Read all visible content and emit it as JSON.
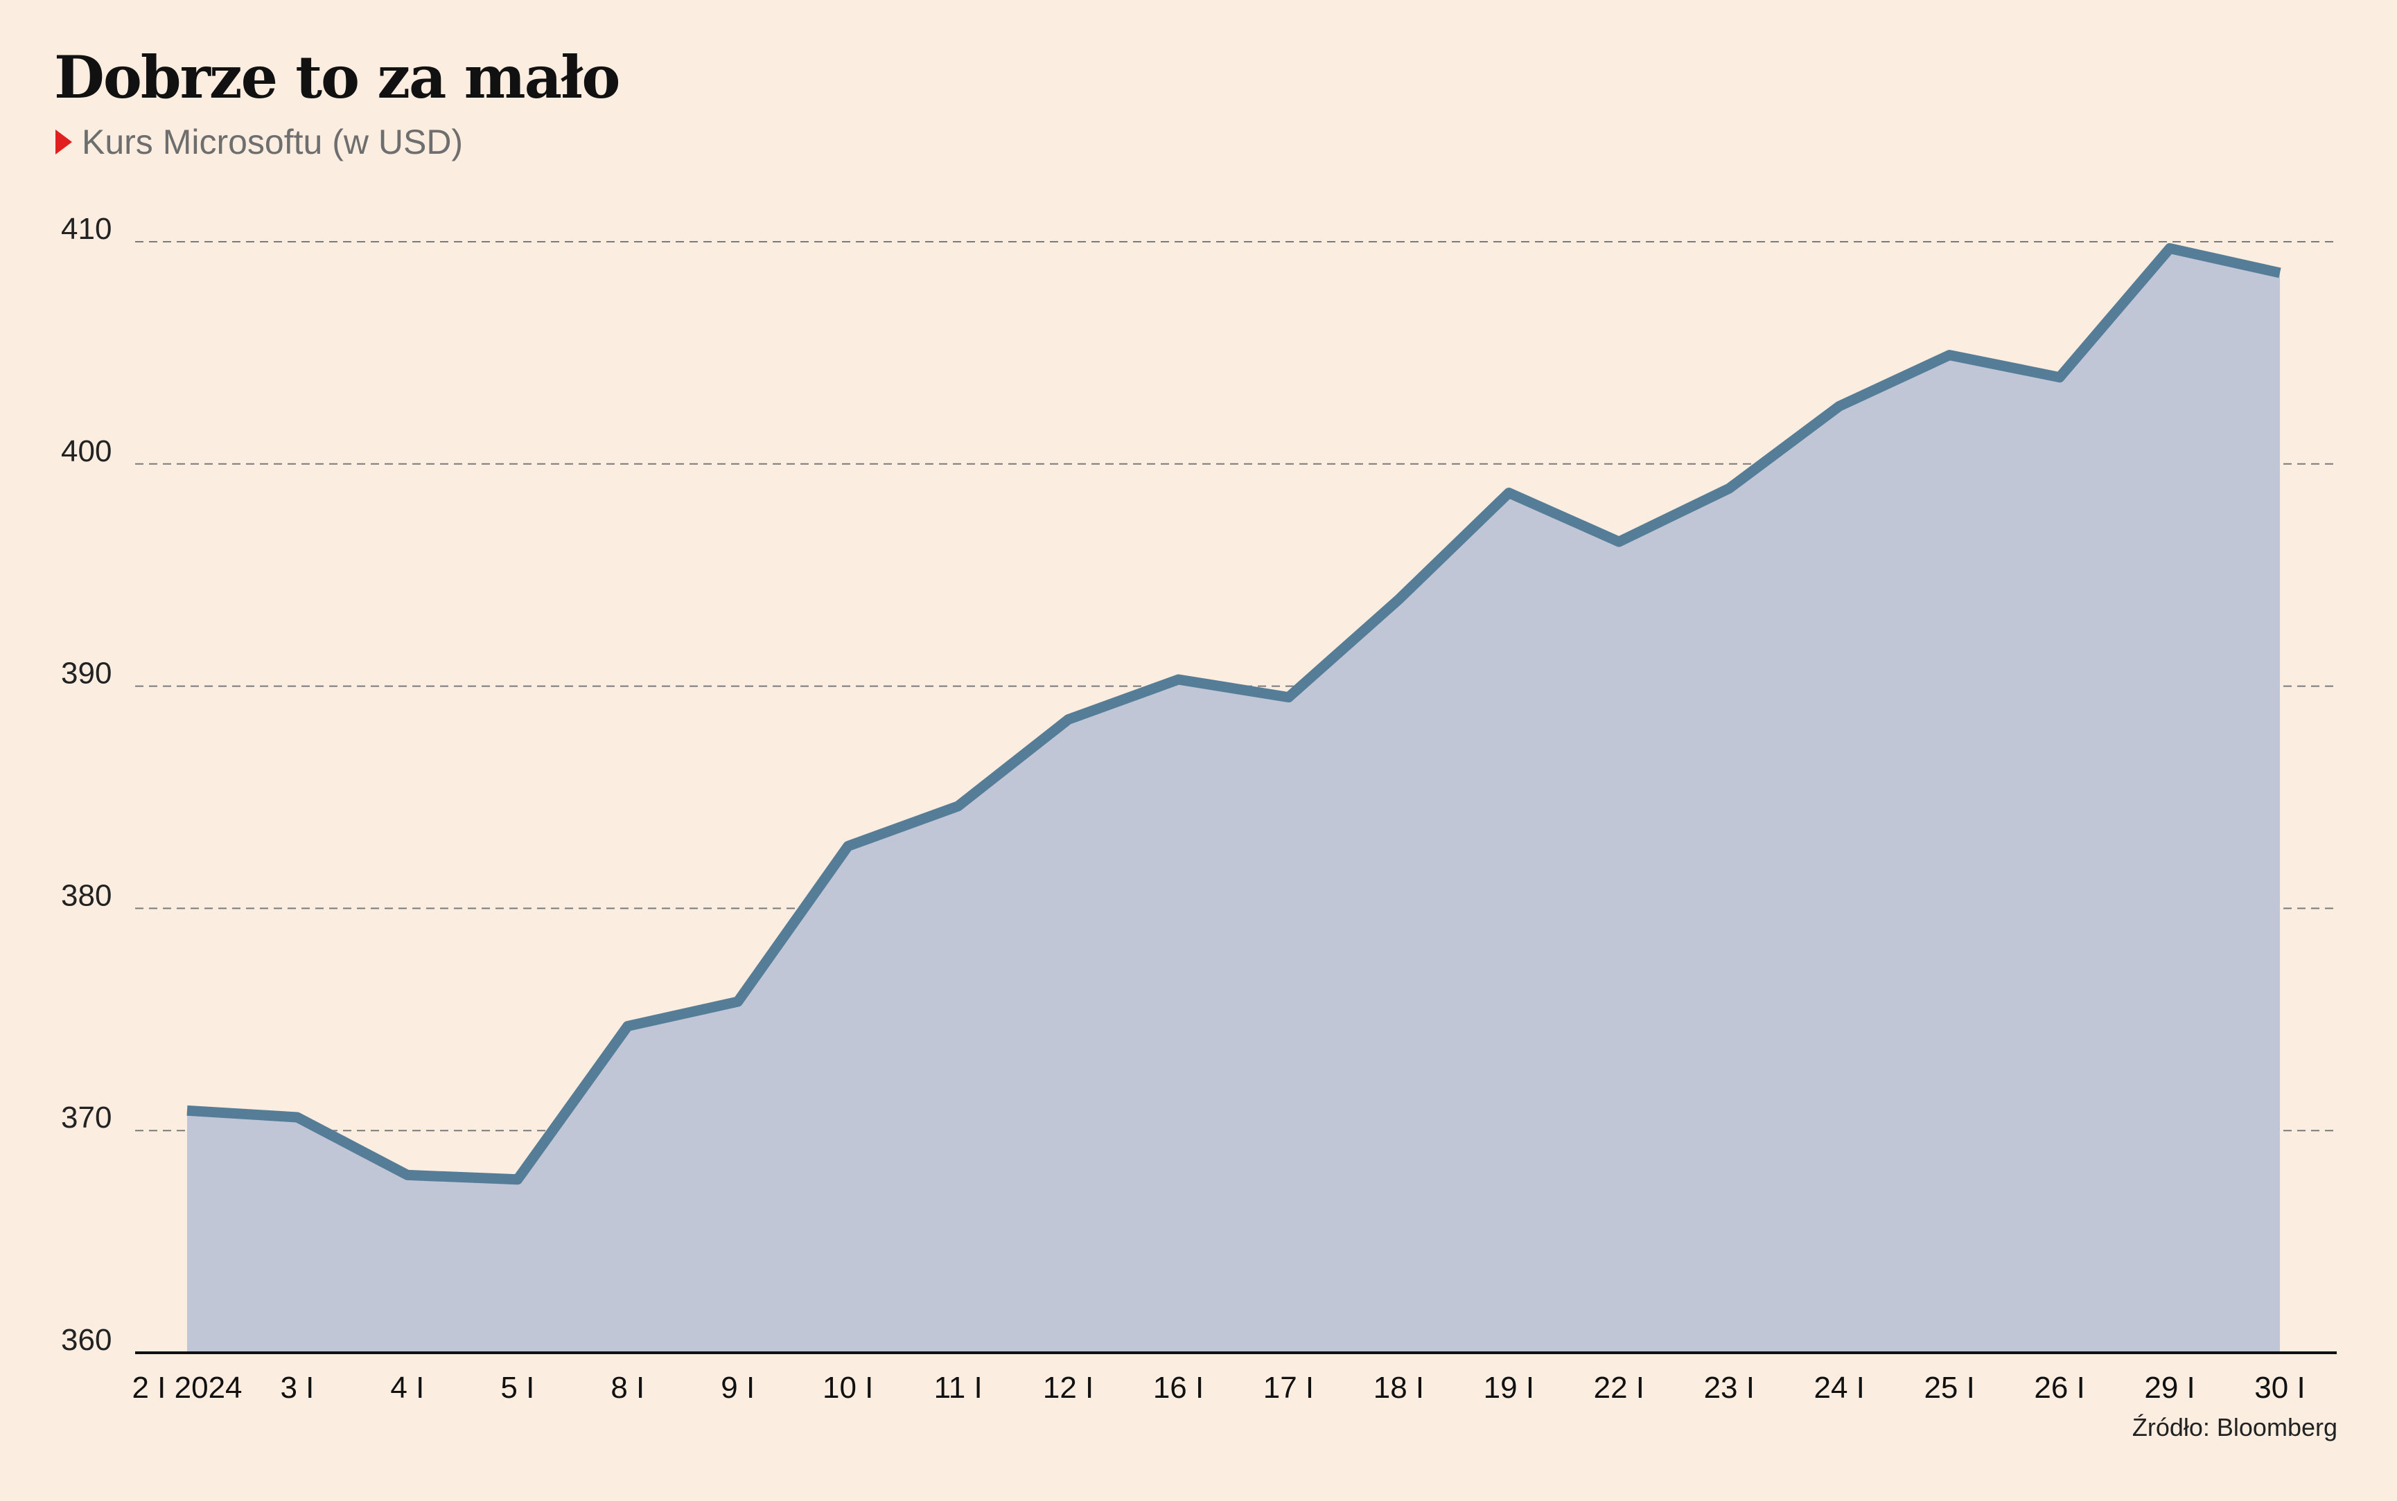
{
  "title": "Dobrze to za mało",
  "subtitle": "Kurs Microsoftu (w USD)",
  "source": "Źródło: Bloomberg",
  "colors": {
    "background": "#FBEEE1",
    "line": "#557D98",
    "area": "#C1C6D6",
    "marker": "#E21F1F",
    "grid": "#7a7a7a"
  },
  "chart_data": {
    "type": "area",
    "x": [
      "2 I 2024",
      "3 I",
      "4 I",
      "5 I",
      "8 I",
      "9 I",
      "10 I",
      "11 I",
      "12 I",
      "16 I",
      "17 I",
      "18 I",
      "19 I",
      "22 I",
      "23 I",
      "24 I",
      "25 I",
      "26 I",
      "29 I",
      "30 I"
    ],
    "series": [
      {
        "values": [
          370.9,
          370.6,
          368.0,
          367.8,
          374.7,
          375.8,
          382.8,
          384.6,
          388.5,
          390.3,
          389.5,
          393.9,
          398.7,
          396.5,
          398.9,
          402.6,
          404.9,
          403.9,
          409.7,
          408.6
        ]
      }
    ],
    "ylim": [
      360,
      410
    ],
    "yticks": [
      360,
      370,
      380,
      390,
      400,
      410
    ],
    "grid": true,
    "xlabel": "",
    "ylabel": ""
  }
}
